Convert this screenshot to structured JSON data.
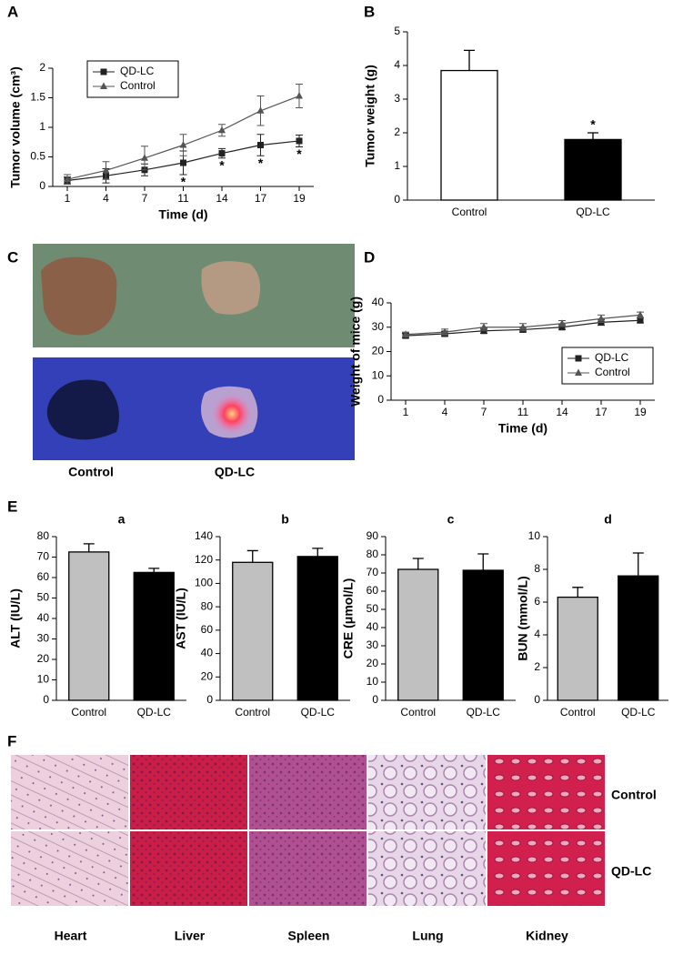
{
  "panel_labels": [
    "A",
    "B",
    "C",
    "D",
    "E",
    "F"
  ],
  "chart_data": [
    {
      "type": "line",
      "xlabel": "Time (d)",
      "ylabel": "Tumor volume (cm³)",
      "categories": [
        "1",
        "4",
        "7",
        "11",
        "14",
        "17",
        "19"
      ],
      "ylim": [
        0,
        2
      ],
      "yticks": [
        0,
        0.5,
        1,
        1.5,
        2
      ],
      "legend": "upper left",
      "series": [
        {
          "name": "QD-LC",
          "color": "#222222",
          "marker": "square",
          "values": [
            0.1,
            0.18,
            0.28,
            0.4,
            0.56,
            0.7,
            0.77
          ],
          "errors": [
            0.06,
            0.12,
            0.1,
            0.2,
            0.08,
            0.18,
            0.1
          ],
          "significance": [
            null,
            null,
            null,
            "*",
            "*",
            "*",
            "*"
          ]
        },
        {
          "name": "Control",
          "color": "#555555",
          "marker": "triangle",
          "values": [
            0.12,
            0.27,
            0.48,
            0.7,
            0.95,
            1.28,
            1.53
          ],
          "errors": [
            0.08,
            0.15,
            0.2,
            0.18,
            0.1,
            0.25,
            0.2
          ]
        }
      ]
    },
    {
      "type": "bar",
      "ylabel": "Tumor weight (g)",
      "categories": [
        "Control",
        "QD-LC"
      ],
      "values": [
        3.85,
        1.8
      ],
      "errors": [
        0.6,
        0.2
      ],
      "significance": [
        null,
        "*"
      ],
      "colors": [
        "#ffffff",
        "#000000"
      ],
      "ylim": [
        0,
        5
      ],
      "yticks": [
        0,
        1,
        2,
        3,
        4,
        5
      ]
    },
    {
      "type": "line",
      "xlabel": "Time (d)",
      "ylabel": "Weight of mice (g)",
      "categories": [
        "1",
        "4",
        "7",
        "11",
        "14",
        "17",
        "19"
      ],
      "ylim": [
        0,
        40
      ],
      "yticks": [
        0,
        10,
        20,
        30,
        40
      ],
      "legend": "lower right",
      "series": [
        {
          "name": "QD-LC",
          "color": "#222222",
          "marker": "square",
          "values": [
            26.5,
            27.3,
            28.5,
            29,
            30,
            32,
            32.8
          ],
          "errors": [
            1,
            1,
            1,
            1,
            1,
            1.2,
            1
          ]
        },
        {
          "name": "Control",
          "color": "#555555",
          "marker": "triangle",
          "values": [
            27,
            28,
            30,
            30,
            31.5,
            33.5,
            35
          ],
          "errors": [
            1,
            1.2,
            1.5,
            1.5,
            1.2,
            1.5,
            1.2
          ]
        }
      ]
    },
    {
      "type": "bar",
      "title": "a",
      "ylabel": "ALT (IU/L)",
      "categories": [
        "Control",
        "QD-LC"
      ],
      "values": [
        72.5,
        62.5
      ],
      "errors": [
        4,
        2
      ],
      "colors": [
        "#c0c0c0",
        "#000000"
      ],
      "ylim": [
        0,
        80
      ],
      "yticks": [
        0,
        10,
        20,
        30,
        40,
        50,
        60,
        70,
        80
      ]
    },
    {
      "type": "bar",
      "title": "b",
      "ylabel": "AST (IU/L)",
      "categories": [
        "Control",
        "QD-LC"
      ],
      "values": [
        118,
        123
      ],
      "errors": [
        10,
        7
      ],
      "colors": [
        "#c0c0c0",
        "#000000"
      ],
      "ylim": [
        0,
        140
      ],
      "yticks": [
        0,
        20,
        40,
        60,
        80,
        100,
        120,
        140
      ]
    },
    {
      "type": "bar",
      "title": "c",
      "ylabel": "CRE (μmol/L)",
      "categories": [
        "Control",
        "QD-LC"
      ],
      "values": [
        72,
        71.5
      ],
      "errors": [
        6,
        9
      ],
      "colors": [
        "#c0c0c0",
        "#000000"
      ],
      "ylim": [
        0,
        90
      ],
      "yticks": [
        0,
        10,
        20,
        30,
        40,
        50,
        60,
        70,
        80,
        90
      ]
    },
    {
      "type": "bar",
      "title": "d",
      "ylabel": "BUN (mmol/L)",
      "categories": [
        "Control",
        "QD-LC"
      ],
      "values": [
        6.3,
        7.6
      ],
      "errors": [
        0.6,
        1.4
      ],
      "colors": [
        "#c0c0c0",
        "#000000"
      ],
      "ylim": [
        0,
        10
      ],
      "yticks": [
        0,
        2,
        4,
        6,
        8,
        10
      ]
    }
  ],
  "photo_panel": {
    "labels": [
      "Control",
      "QD-LC"
    ]
  },
  "histology": {
    "tissues": [
      "Heart",
      "Liver",
      "Spleen",
      "Lung",
      "Kidney"
    ],
    "groups": [
      "Control",
      "QD-LC"
    ]
  }
}
